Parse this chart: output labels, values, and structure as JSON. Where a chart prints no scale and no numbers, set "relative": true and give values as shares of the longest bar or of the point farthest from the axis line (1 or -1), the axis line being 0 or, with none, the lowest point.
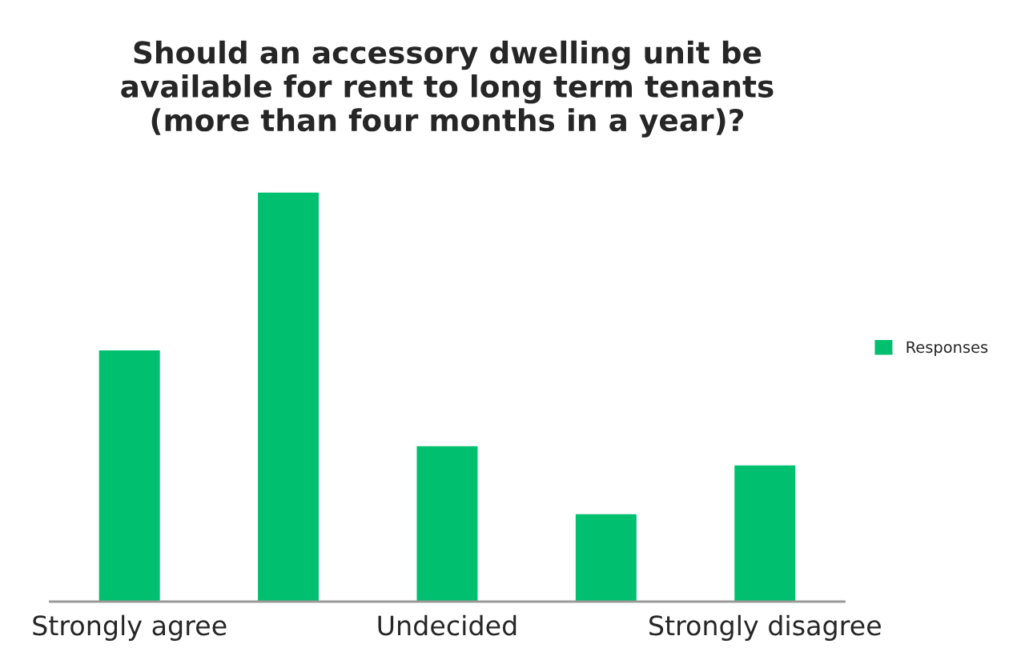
{
  "chart_data": {
    "type": "bar",
    "title": "Should an accessory dwelling unit be\navailable for rent to long term tenants\n(more than four months in a year)?",
    "categories": [
      "Strongly agree",
      null,
      "Undecided",
      null,
      "Strongly disagree"
    ],
    "relative": true,
    "series": [
      {
        "name": "Responses",
        "color": "#00bf6f",
        "values": [
          0.615,
          1,
          0.381,
          0.215,
          0.334
        ]
      }
    ],
    "legend": "right",
    "grid": false
  }
}
